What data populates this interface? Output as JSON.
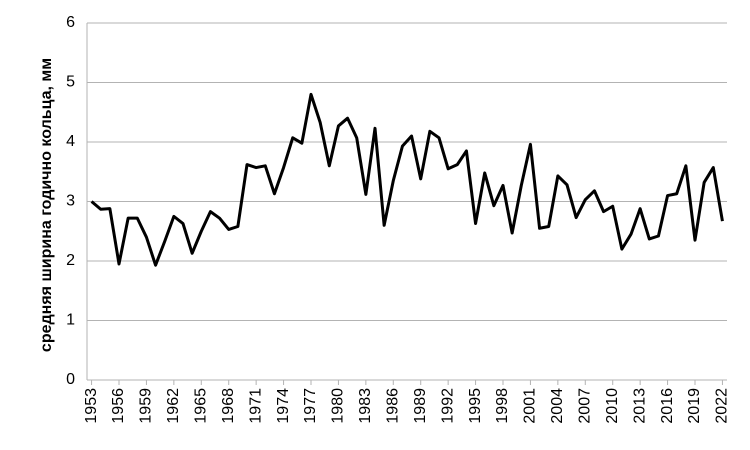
{
  "chart_data": {
    "type": "line",
    "y_label": "средняя ширина годично кольца, мм",
    "x": [
      1953,
      1954,
      1955,
      1956,
      1957,
      1958,
      1959,
      1960,
      1961,
      1962,
      1963,
      1964,
      1965,
      1966,
      1967,
      1968,
      1969,
      1970,
      1971,
      1972,
      1973,
      1974,
      1975,
      1976,
      1977,
      1978,
      1979,
      1980,
      1981,
      1982,
      1983,
      1984,
      1985,
      1986,
      1987,
      1988,
      1989,
      1990,
      1991,
      1992,
      1993,
      1994,
      1995,
      1996,
      1997,
      1998,
      1999,
      2000,
      2001,
      2002,
      2003,
      2004,
      2005,
      2006,
      2007,
      2008,
      2009,
      2010,
      2011,
      2012,
      2013,
      2014,
      2015,
      2016,
      2017,
      2018,
      2019,
      2020,
      2021,
      2022
    ],
    "values": [
      3.0,
      2.87,
      2.88,
      1.95,
      2.72,
      2.72,
      2.4,
      1.93,
      2.33,
      2.75,
      2.63,
      2.13,
      2.5,
      2.83,
      2.72,
      2.53,
      2.58,
      3.62,
      3.57,
      3.6,
      3.13,
      3.57,
      4.07,
      3.98,
      4.8,
      4.33,
      3.6,
      4.27,
      4.4,
      4.07,
      3.12,
      4.23,
      2.6,
      3.35,
      3.93,
      4.1,
      3.38,
      4.18,
      4.07,
      3.55,
      3.62,
      3.85,
      2.63,
      3.48,
      2.93,
      3.27,
      2.47,
      3.27,
      3.96,
      2.55,
      2.58,
      3.43,
      3.28,
      2.73,
      3.03,
      3.18,
      2.83,
      2.92,
      2.2,
      2.45,
      2.88,
      2.37,
      2.42,
      3.1,
      3.13,
      3.6,
      2.35,
      3.32,
      3.57,
      2.67
    ],
    "color": "#000000",
    "xlim": [
      1952.5,
      2022.5
    ],
    "xticks": [
      1953,
      1956,
      1959,
      1962,
      1965,
      1968,
      1971,
      1974,
      1977,
      1980,
      1983,
      1986,
      1989,
      1992,
      1995,
      1998,
      2001,
      2004,
      2007,
      2010,
      2013,
      2016,
      2019,
      2022
    ],
    "ylim": [
      0,
      6
    ],
    "yticks": [
      0,
      1,
      2,
      3,
      4,
      5,
      6
    ],
    "grid": true
  }
}
